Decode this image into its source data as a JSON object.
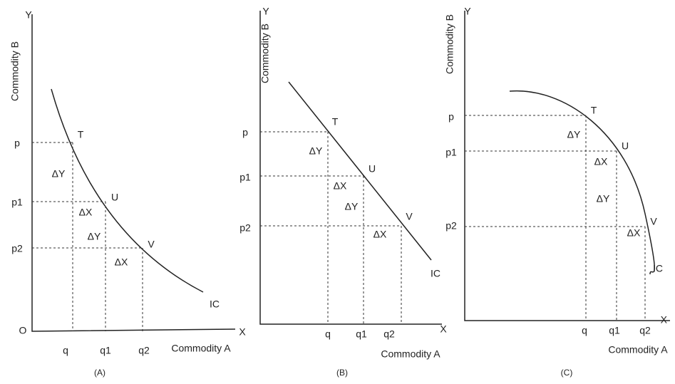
{
  "panels": [
    {
      "y_axis": "Y",
      "x_axis": "X",
      "origin": "O",
      "y_title": "Commodity B",
      "x_title": "Commodity A",
      "y_ticks": [
        "p",
        "p1",
        "p2"
      ],
      "x_ticks": [
        "q",
        "q1",
        "q2"
      ],
      "points": [
        "T",
        "U",
        "V"
      ],
      "deltas": [
        "ΔY",
        "ΔX",
        "ΔY",
        "ΔX"
      ],
      "curve": "IC",
      "caption": "(A)"
    },
    {
      "y_axis": "Y",
      "x_axis": "X",
      "y_title": "Commodity B",
      "x_title": "Commodity A",
      "y_ticks": [
        "p",
        "p1",
        "p2"
      ],
      "x_ticks": [
        "q",
        "q1",
        "q2"
      ],
      "points": [
        "T",
        "U",
        "V"
      ],
      "deltas": [
        "ΔY",
        "ΔX",
        "ΔY",
        "ΔX"
      ],
      "curve": "IC",
      "caption": "(B)"
    },
    {
      "y_axis": "Y",
      "x_axis": "X",
      "y_title": "Commodity B",
      "x_title": "Commodity A",
      "y_ticks": [
        "p",
        "p1",
        "p2"
      ],
      "x_ticks": [
        "q",
        "q1",
        "q2"
      ],
      "points": [
        "T",
        "U",
        "V"
      ],
      "deltas": [
        "ΔY",
        "ΔX",
        "ΔY",
        "ΔX"
      ],
      "curve": "IC",
      "caption": "(C)"
    }
  ]
}
